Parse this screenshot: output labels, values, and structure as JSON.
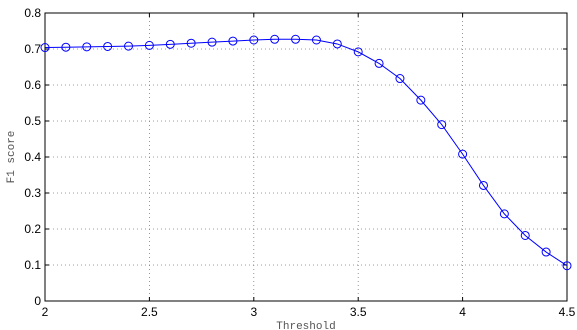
{
  "chart_data": {
    "type": "line",
    "title": "",
    "xlabel": "Threshold",
    "ylabel": "F1 score",
    "xlim": [
      2,
      4.5
    ],
    "ylim": [
      0,
      0.8
    ],
    "xticks": [
      "2",
      "2.5",
      "3",
      "3.5",
      "4",
      "4.5"
    ],
    "yticks": [
      "0",
      "0.1",
      "0.2",
      "0.3",
      "0.4",
      "0.5",
      "0.6",
      "0.7",
      "0.8"
    ],
    "grid": true,
    "line_color": "#0000ff",
    "series": [
      {
        "x": [
          2.0,
          2.1,
          2.2,
          2.3,
          2.4,
          2.5,
          2.6,
          2.7,
          2.8,
          2.9,
          3.0,
          3.1,
          3.2,
          3.3,
          3.4,
          3.5,
          3.6,
          3.7,
          3.8,
          3.9,
          4.0,
          4.1,
          4.2,
          4.3,
          4.4,
          4.5
        ],
        "values": [
          0.704,
          0.705,
          0.706,
          0.707,
          0.708,
          0.71,
          0.713,
          0.716,
          0.719,
          0.722,
          0.725,
          0.727,
          0.727,
          0.725,
          0.714,
          0.692,
          0.66,
          0.618,
          0.558,
          0.49,
          0.408,
          0.321,
          0.242,
          0.182,
          0.136,
          0.098
        ]
      }
    ]
  }
}
